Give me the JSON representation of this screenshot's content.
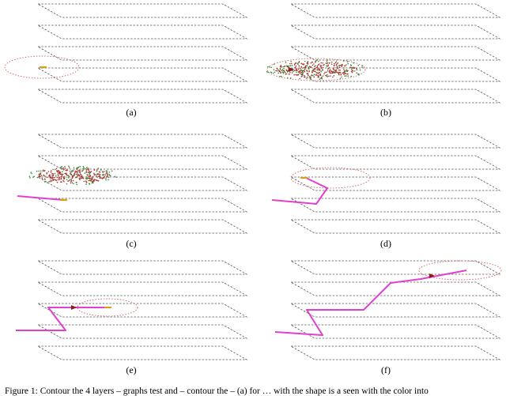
{
  "panels": [
    {
      "label": "(a)"
    },
    {
      "label": "(b)"
    },
    {
      "label": "(c)"
    },
    {
      "label": "(d)"
    },
    {
      "label": "(e)"
    },
    {
      "label": "(f)"
    }
  ],
  "caption": "Figure 1:  Contour the 4 layers – graphs test and – contour the – (a) for … with the shape is a seen with the color into",
  "colors": {
    "floor": "#555555",
    "path": "#e040d0",
    "explored": "#b03030",
    "frontier": "#2e8b2e",
    "robot": "#d4a017",
    "range": "#d06060"
  }
}
